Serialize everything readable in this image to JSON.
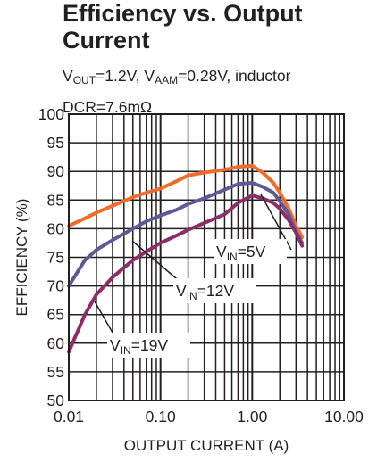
{
  "title_line1": "Efficiency vs. Output",
  "title_line2": "Current",
  "subtitle": {
    "v_out_main": "V",
    "v_out_sub": "OUT",
    "v_out_val": "=1.2V, ",
    "v_aam_main": "V",
    "v_aam_sub": "AAM",
    "v_aam_val": "=0.28V, inductor",
    "line2": "DCR=7.6mΩ"
  },
  "chart_data": {
    "type": "line",
    "xlabel": "OUTPUT CURRENT (A)",
    "ylabel": "EFFICIENCY (%)",
    "xscale": "log",
    "xlim": [
      0.01,
      10
    ],
    "ylim": [
      50,
      100
    ],
    "xticks": [
      0.01,
      0.1,
      1,
      10
    ],
    "xtick_labels": [
      "0.01",
      "0.10",
      "1.00",
      "10.00"
    ],
    "yticks": [
      50,
      55,
      60,
      65,
      70,
      75,
      80,
      85,
      90,
      95,
      100
    ],
    "ytick_labels": [
      "50",
      "55",
      "60",
      "65",
      "70",
      "75",
      "80",
      "85",
      "90",
      "95",
      "100"
    ],
    "grid": true,
    "series": [
      {
        "name": "V_IN=5V",
        "label_main": "V",
        "label_sub": "IN",
        "label_val": "=5V",
        "color": "#f26b2b",
        "x": [
          0.01,
          0.015,
          0.02,
          0.03,
          0.05,
          0.07,
          0.1,
          0.15,
          0.2,
          0.3,
          0.5,
          0.7,
          1.0,
          1.3,
          1.7,
          2.0,
          2.5,
          3.0,
          3.5
        ],
        "y": [
          80.5,
          81.8,
          82.8,
          84.0,
          85.5,
          86.3,
          87.0,
          88.3,
          89.3,
          89.8,
          90.3,
          90.8,
          91.0,
          89.8,
          88.0,
          86.3,
          83.5,
          80.5,
          78.5
        ]
      },
      {
        "name": "V_IN=12V",
        "label_main": "V",
        "label_sub": "IN",
        "label_val": "=12V",
        "color": "#5e5a95",
        "x": [
          0.01,
          0.015,
          0.02,
          0.03,
          0.05,
          0.07,
          0.1,
          0.15,
          0.2,
          0.3,
          0.5,
          0.7,
          1.0,
          1.3,
          1.7,
          2.0,
          2.5,
          3.0,
          3.5
        ],
        "y": [
          70.0,
          74.5,
          76.3,
          78.0,
          80.0,
          81.3,
          82.3,
          83.3,
          84.3,
          85.3,
          86.8,
          87.8,
          88.0,
          87.3,
          86.3,
          84.8,
          82.5,
          79.5,
          77.5
        ]
      },
      {
        "name": "V_IN=19V",
        "label_main": "V",
        "label_sub": "IN",
        "label_val": "=19V",
        "color": "#8c2d68",
        "x": [
          0.01,
          0.015,
          0.02,
          0.03,
          0.05,
          0.07,
          0.1,
          0.15,
          0.2,
          0.3,
          0.5,
          0.7,
          1.0,
          1.3,
          1.7,
          2.0,
          2.5,
          3.0,
          3.5
        ],
        "y": [
          58.5,
          65.0,
          68.5,
          71.5,
          74.5,
          76.0,
          77.5,
          78.8,
          79.8,
          81.0,
          82.5,
          84.5,
          85.8,
          85.3,
          84.5,
          83.5,
          81.5,
          79.3,
          77.0
        ]
      }
    ]
  }
}
